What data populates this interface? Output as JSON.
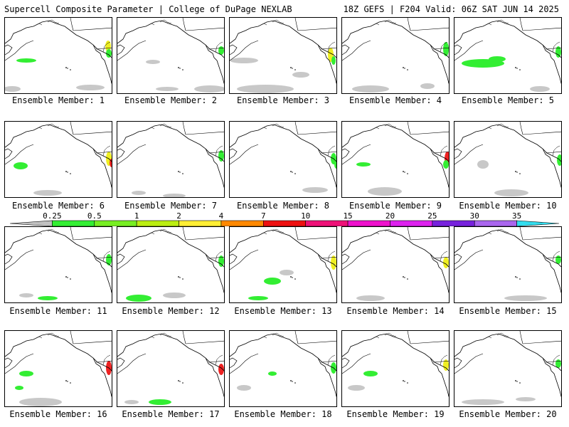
{
  "header": {
    "left": "Supercell Composite Parameter | College of DuPage NEXLAB",
    "right": "18Z GEFS | F204 Valid: 06Z SAT JUN 14 2025"
  },
  "caption_prefix": "Ensemble Member: ",
  "members": [
    {
      "id": 1,
      "caption": "Ensemble Member: 1"
    },
    {
      "id": 2,
      "caption": "Ensemble Member: 2"
    },
    {
      "id": 3,
      "caption": "Ensemble Member: 3"
    },
    {
      "id": 4,
      "caption": "Ensemble Member: 4"
    },
    {
      "id": 5,
      "caption": "Ensemble Member: 5"
    },
    {
      "id": 6,
      "caption": "Ensemble Member: 6"
    },
    {
      "id": 7,
      "caption": "Ensemble Member: 7"
    },
    {
      "id": 8,
      "caption": "Ensemble Member: 8"
    },
    {
      "id": 9,
      "caption": "Ensemble Member: 9"
    },
    {
      "id": 10,
      "caption": "Ensemble Member: 10"
    },
    {
      "id": 11,
      "caption": "Ensemble Member: 11"
    },
    {
      "id": 12,
      "caption": "Ensemble Member: 12"
    },
    {
      "id": 13,
      "caption": "Ensemble Member: 13"
    },
    {
      "id": 14,
      "caption": "Ensemble Member: 14"
    },
    {
      "id": 15,
      "caption": "Ensemble Member: 15"
    },
    {
      "id": 16,
      "caption": "Ensemble Member: 16"
    },
    {
      "id": 17,
      "caption": "Ensemble Member: 17"
    },
    {
      "id": 18,
      "caption": "Ensemble Member: 18"
    },
    {
      "id": 19,
      "caption": "Ensemble Member: 19"
    },
    {
      "id": 20,
      "caption": "Ensemble Member: 20"
    }
  ],
  "colorbar": {
    "labels": [
      "0.25",
      "0.5",
      "1",
      "2",
      "4",
      "7",
      "10",
      "15",
      "20",
      "25",
      "30",
      "35"
    ],
    "colors": [
      "#c0c0c0",
      "#33ee33",
      "#77ee22",
      "#bbee11",
      "#ffee33",
      "#ff8800",
      "#ee1111",
      "#ee1177",
      "#ee11cc",
      "#dd22ee",
      "#7722dd",
      "#aa66ee",
      "#33ddee"
    ]
  },
  "map_colors": {
    "gray": "#c8c8c8",
    "green": "#33ee33",
    "yellow": "#eeee22",
    "red": "#ee2222"
  }
}
